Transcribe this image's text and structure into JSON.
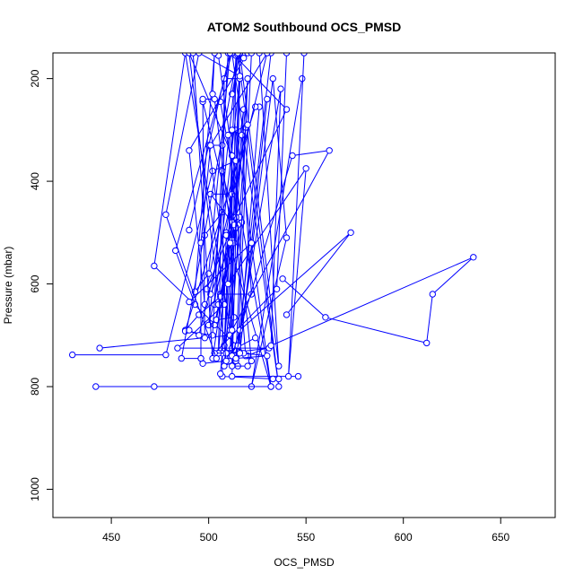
{
  "chart_data": {
    "type": "line",
    "title": "ATOM2 Southbound OCS_PMSD",
    "xlabel": "OCS_PMSD",
    "ylabel": "Pressure (mbar)",
    "xlim": [
      420,
      678
    ],
    "ylim": [
      1055,
      150
    ],
    "y_reversed": true,
    "grid": false,
    "legend": "none",
    "x_ticks": [
      450,
      500,
      550,
      600,
      650
    ],
    "y_ticks": [
      200,
      400,
      600,
      800,
      1000
    ],
    "series_color": "#0000ff",
    "series": [
      {
        "values": [
          [
            548,
            200
          ],
          [
            522,
            800
          ],
          [
            540,
            510
          ],
          [
            533,
            200
          ],
          [
            515,
            760
          ],
          [
            526,
            255
          ]
        ]
      },
      {
        "values": [
          [
            506,
            245
          ],
          [
            532,
            800
          ],
          [
            514,
            300
          ],
          [
            508,
            730
          ],
          [
            517,
            480
          ],
          [
            505,
            155
          ]
        ]
      },
      {
        "values": [
          [
            512,
            150
          ],
          [
            536,
            800
          ],
          [
            515,
            150
          ],
          [
            500,
            680
          ],
          [
            512,
            485
          ],
          [
            519,
            295
          ],
          [
            511,
            740
          ],
          [
            516,
            200
          ],
          [
            503,
            640
          ]
        ]
      },
      {
        "values": [
          [
            442,
            800
          ],
          [
            472,
            800
          ],
          [
            532,
            800
          ],
          [
            509,
            500
          ],
          [
            518,
            260
          ],
          [
            508,
            720
          ],
          [
            514,
            155
          ],
          [
            512,
            725
          ]
        ]
      },
      {
        "values": [
          [
            538,
            590
          ],
          [
            560,
            665
          ],
          [
            612,
            715
          ],
          [
            615,
            620
          ],
          [
            636,
            548
          ],
          [
            520,
            740
          ],
          [
            472,
            565
          ],
          [
            488,
            150
          ],
          [
            511,
            690
          ]
        ]
      },
      {
        "values": [
          [
            501,
            620
          ],
          [
            515,
            485
          ],
          [
            516,
            470
          ],
          [
            503,
            680
          ],
          [
            514,
            470
          ],
          [
            499,
            610
          ],
          [
            507,
            460
          ],
          [
            498,
            505
          ]
        ]
      },
      {
        "values": [
          [
            430,
            738
          ],
          [
            478,
            738
          ],
          [
            502,
            380
          ],
          [
            514,
            360
          ],
          [
            516,
            150
          ],
          [
            512,
            230
          ]
        ]
      },
      {
        "values": [
          [
            444,
            725
          ],
          [
            511,
            700
          ],
          [
            512,
            300
          ],
          [
            517,
            310
          ],
          [
            522,
            620
          ],
          [
            506,
            620
          ]
        ]
      },
      {
        "values": [
          [
            493,
            640
          ],
          [
            483,
            535
          ],
          [
            512,
            150
          ],
          [
            540,
            260
          ],
          [
            509,
            505
          ],
          [
            508,
            640
          ],
          [
            484,
            725
          ],
          [
            531,
            725
          ],
          [
            510,
            735
          ]
        ]
      },
      {
        "values": [
          [
            498,
            705
          ],
          [
            497,
            245
          ],
          [
            512,
            480
          ],
          [
            501,
            425
          ],
          [
            512,
            425
          ],
          [
            505,
            735
          ],
          [
            507,
            380
          ],
          [
            514,
            490
          ],
          [
            519,
            740
          ],
          [
            513,
            720
          ]
        ]
      },
      {
        "values": [
          [
            497,
            240
          ],
          [
            503,
            240
          ],
          [
            512,
            515
          ],
          [
            513,
            520
          ],
          [
            505,
            640
          ],
          [
            513,
            485
          ],
          [
            504,
            670
          ],
          [
            513,
            665
          ]
        ]
      },
      {
        "values": [
          [
            536,
            785
          ],
          [
            533,
            785
          ],
          [
            507,
            780
          ],
          [
            508,
            200
          ],
          [
            516,
            200
          ],
          [
            512,
            780
          ],
          [
            546,
            780
          ]
        ]
      },
      {
        "values": [
          [
            506,
            775
          ],
          [
            507,
            735
          ],
          [
            505,
            735
          ],
          [
            518,
            735
          ],
          [
            530,
            740
          ],
          [
            514,
            745
          ],
          [
            520,
            200
          ],
          [
            508,
            760
          ],
          [
            514,
            750
          ]
        ]
      },
      {
        "values": [
          [
            549,
            150
          ],
          [
            541,
            780
          ],
          [
            550,
            375
          ],
          [
            510,
            600
          ],
          [
            500,
            330
          ],
          [
            507,
            330
          ]
        ]
      },
      {
        "values": [
          [
            524,
            705
          ],
          [
            509,
            735
          ],
          [
            503,
            735
          ],
          [
            535,
            610
          ],
          [
            540,
            150
          ]
        ]
      },
      {
        "values": [
          [
            506,
            625
          ],
          [
            495,
            660
          ],
          [
            488,
            690
          ],
          [
            524,
            255
          ]
        ]
      },
      {
        "values": [
          [
            498,
            640
          ],
          [
            490,
            340
          ],
          [
            520,
            150
          ],
          [
            510,
            150
          ],
          [
            502,
            700
          ],
          [
            488,
            692
          ]
        ]
      },
      {
        "values": [
          [
            490,
            495
          ],
          [
            511,
            150
          ],
          [
            500,
            580
          ],
          [
            493,
            615
          ],
          [
            503,
            150
          ],
          [
            502,
            230
          ]
        ]
      },
      {
        "values": [
          [
            516,
            150
          ],
          [
            536,
            760
          ],
          [
            526,
            150
          ],
          [
            516,
            150
          ],
          [
            518,
            160
          ],
          [
            515,
            150
          ]
        ]
      },
      {
        "values": [
          [
            497,
            755
          ],
          [
            509,
            750
          ],
          [
            490,
            150
          ],
          [
            512,
            350
          ],
          [
            512,
            760
          ],
          [
            520,
            760
          ]
        ]
      },
      {
        "values": [
          [
            511,
            520
          ],
          [
            502,
            745
          ],
          [
            492,
            150
          ]
        ]
      },
      {
        "values": [
          [
            532,
            150
          ],
          [
            515,
            720
          ],
          [
            522,
            150
          ]
        ]
      },
      {
        "values": [
          [
            490,
            690
          ],
          [
            495,
            700
          ],
          [
            530,
            150
          ],
          [
            501,
            330
          ],
          [
            496,
            520
          ],
          [
            496,
            745
          ]
        ]
      },
      {
        "values": [
          [
            496,
            745
          ],
          [
            486,
            745
          ],
          [
            515,
            150
          ]
        ]
      },
      {
        "values": [
          [
            522,
            750
          ],
          [
            510,
            310
          ],
          [
            520,
            290
          ]
        ]
      },
      {
        "values": [
          [
            490,
            635
          ],
          [
            522,
            520
          ],
          [
            530,
            240
          ],
          [
            516,
            735
          ]
        ]
      },
      {
        "values": [
          [
            512,
            690
          ],
          [
            562,
            340
          ],
          [
            543,
            350
          ],
          [
            512,
            740
          ]
        ]
      },
      {
        "values": [
          [
            504,
            745
          ],
          [
            478,
            465
          ],
          [
            495,
            150
          ],
          [
            516,
            195
          ]
        ]
      },
      {
        "values": [
          [
            540,
            660
          ],
          [
            573,
            500
          ],
          [
            516,
            690
          ]
        ]
      },
      {
        "values": [
          [
            514,
            745
          ],
          [
            537,
            220
          ],
          [
            532,
            720
          ]
        ]
      }
    ]
  }
}
